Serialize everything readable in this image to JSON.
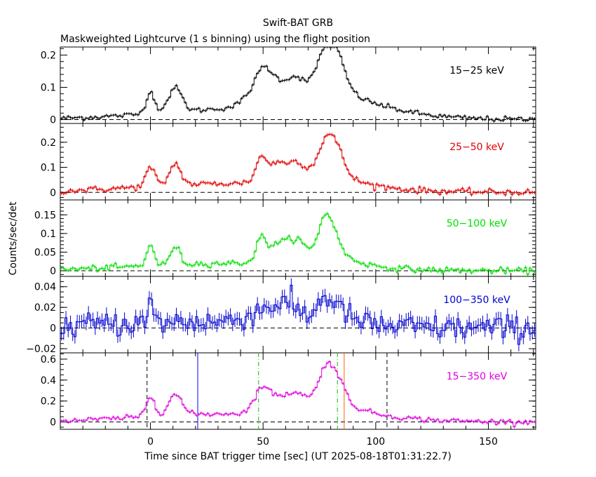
{
  "page": {
    "title": "Swift-BAT GRB",
    "subtitle": "Maskweighted Lightcurve (1 s binning) using the flight position",
    "xlabel": "Time since BAT trigger time [sec] (UT 2025-08-18T01:31:22.7)",
    "ylabel": "Counts/sec/det"
  },
  "chart_data": {
    "type": "line",
    "title": "Swift-BAT GRB",
    "subtitle": "Maskweighted Lightcurve (1 s binning) using the flight position",
    "xlabel": "Time since BAT trigger time [sec] (UT 2025-08-18T01:31:22.7)",
    "ylabel": "Counts/sec/det",
    "xlim": [
      -40,
      171
    ],
    "x_ticks": [
      0,
      50,
      100,
      150
    ],
    "x_tick_labels": [
      "0",
      "50",
      "100",
      "150"
    ],
    "x_grid_step": 10,
    "panels": [
      {
        "label": "15−25 keV",
        "color": "#000000",
        "ylim": [
          -0.012,
          0.225
        ],
        "y_ticks": [
          0,
          0.1,
          0.2
        ],
        "y_tick_labels": [
          "0",
          "0.1",
          "0.2"
        ],
        "y_minor_step": 0.02,
        "noise": 0.004,
        "components": [
          [
            0,
            0.065,
            2.0
          ],
          [
            11,
            0.075,
            3.0
          ],
          [
            45,
            0.035,
            4.0
          ],
          [
            50,
            0.06,
            3.0
          ],
          [
            55,
            0.07,
            5.0
          ],
          [
            65,
            0.07,
            4.0
          ],
          [
            79,
            0.19,
            5.0
          ]
        ],
        "bursts": [
          [
            40,
            0.03,
            40
          ],
          [
            78,
            0.03,
            25
          ]
        ],
        "bursts_tail": [
          [
            85,
            0.045,
            18
          ]
        ]
      },
      {
        "label": "25−50 keV",
        "color": "#e00000",
        "ylim": [
          -0.03,
          0.275
        ],
        "y_ticks": [
          0,
          0.1,
          0.2
        ],
        "y_tick_labels": [
          "0",
          "0.1",
          "0.2"
        ],
        "y_minor_step": 0.02,
        "noise": 0.006,
        "components": [
          [
            0,
            0.075,
            2.0
          ],
          [
            11,
            0.085,
            2.5
          ],
          [
            49,
            0.07,
            2.0
          ],
          [
            56,
            0.085,
            6.0
          ],
          [
            66,
            0.07,
            4.0
          ],
          [
            79,
            0.21,
            4.5
          ]
        ],
        "bursts": [
          [
            35,
            0.035,
            40
          ]
        ],
        "bursts_tail": [
          [
            85,
            0.05,
            15
          ]
        ]
      },
      {
        "label": "50−100 keV",
        "color": "#00e000",
        "ylim": [
          -0.015,
          0.19
        ],
        "y_ticks": [
          0,
          0.05,
          0.1,
          0.15
        ],
        "y_tick_labels": [
          "0",
          "0.05",
          "0.1",
          "0.15"
        ],
        "y_minor_step": 0.01,
        "noise": 0.004,
        "components": [
          [
            0,
            0.06,
            1.5
          ],
          [
            11,
            0.05,
            2.0
          ],
          [
            49,
            0.05,
            2.0
          ],
          [
            57,
            0.055,
            6.0
          ],
          [
            66,
            0.05,
            4.0
          ],
          [
            78,
            0.14,
            3.5
          ]
        ],
        "bursts": [
          [
            35,
            0.02,
            40
          ]
        ],
        "bursts_tail": [
          [
            84,
            0.04,
            10
          ]
        ]
      },
      {
        "label": "100−350 keV",
        "color": "#0000d0",
        "ylim": [
          -0.024,
          0.05
        ],
        "y_ticks": [
          -0.02,
          0,
          0.02,
          0.04
        ],
        "y_tick_labels": [
          "−0.02",
          "0",
          "0.02",
          "0.04"
        ],
        "y_minor_step": 0.005,
        "noise": 0.006,
        "components": [
          [
            0,
            0.02,
            1.0
          ],
          [
            52,
            0.013,
            8.0
          ],
          [
            62,
            0.013,
            6.0
          ],
          [
            78,
            0.028,
            4.0
          ]
        ],
        "bursts": [
          [
            20,
            0.006,
            40
          ]
        ],
        "bursts_tail": [
          [
            86,
            0.012,
            8
          ]
        ]
      },
      {
        "label": "15−350 keV",
        "color": "#e000e0",
        "ylim": [
          -0.07,
          0.66
        ],
        "y_ticks": [
          0,
          0.2,
          0.4,
          0.6
        ],
        "y_tick_labels": [
          "0",
          "0.2",
          "0.4",
          "0.6"
        ],
        "y_minor_step": 0.05,
        "noise": 0.012,
        "components": [
          [
            0,
            0.19,
            2.0
          ],
          [
            11,
            0.2,
            3.0
          ],
          [
            49,
            0.17,
            3.0
          ],
          [
            56,
            0.17,
            6.0
          ],
          [
            66,
            0.17,
            4.0
          ],
          [
            79,
            0.52,
            4.5
          ]
        ],
        "bursts": [
          [
            38,
            0.08,
            40
          ]
        ],
        "bursts_tail": [
          [
            86,
            0.14,
            16
          ]
        ],
        "vlines": [
          {
            "x": -1.5,
            "color": "#000000",
            "style": "dash"
          },
          {
            "x": 21,
            "color": "#0000ff",
            "style": "solid"
          },
          {
            "x": 48,
            "color": "#00c000",
            "style": "dashdot"
          },
          {
            "x": 83,
            "color": "#00c000",
            "style": "dashdot"
          },
          {
            "x": 86,
            "color": "#ff6000",
            "style": "solid"
          },
          {
            "x": 105,
            "color": "#000000",
            "style": "dash"
          }
        ]
      }
    ]
  }
}
